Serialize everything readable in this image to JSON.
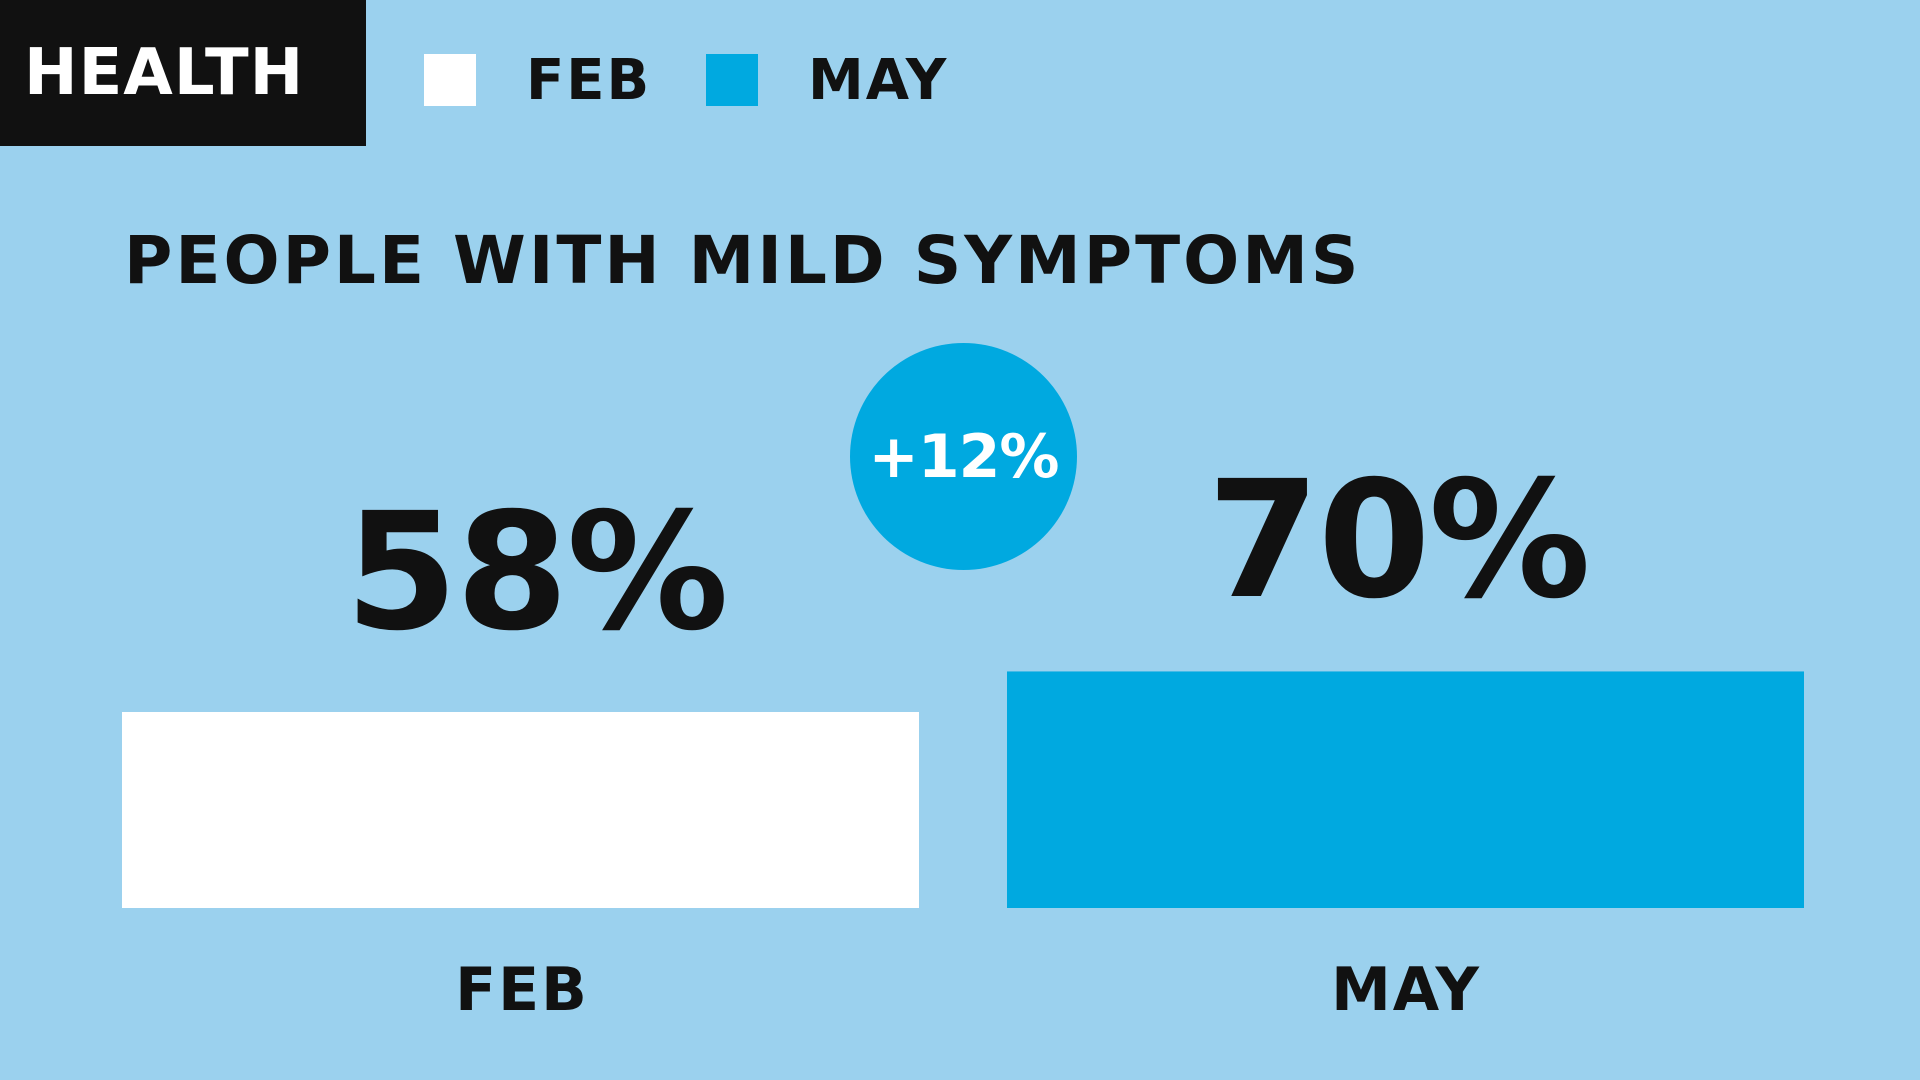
{
  "header": {
    "tag": "HEALTH"
  },
  "legend": [
    {
      "label": "FEB",
      "color": "#ffffff"
    },
    {
      "label": "MAY",
      "color": "#00a9e0"
    }
  ],
  "badge": {
    "text": "+12%",
    "color": "#00a9e0"
  },
  "colors": {
    "background": "#9bd1ee",
    "text": "#111111"
  },
  "chart_data": {
    "type": "bar",
    "title": "PEOPLE WITH MILD SYMPTOMS",
    "categories": [
      "FEB",
      "MAY"
    ],
    "values": [
      58,
      70
    ],
    "value_labels": [
      "58%",
      "70%"
    ],
    "colors": [
      "#ffffff",
      "#00a9e0"
    ],
    "unit": "%",
    "xlabel": "",
    "ylabel": "",
    "grid": false,
    "legend_position": "top-left"
  }
}
